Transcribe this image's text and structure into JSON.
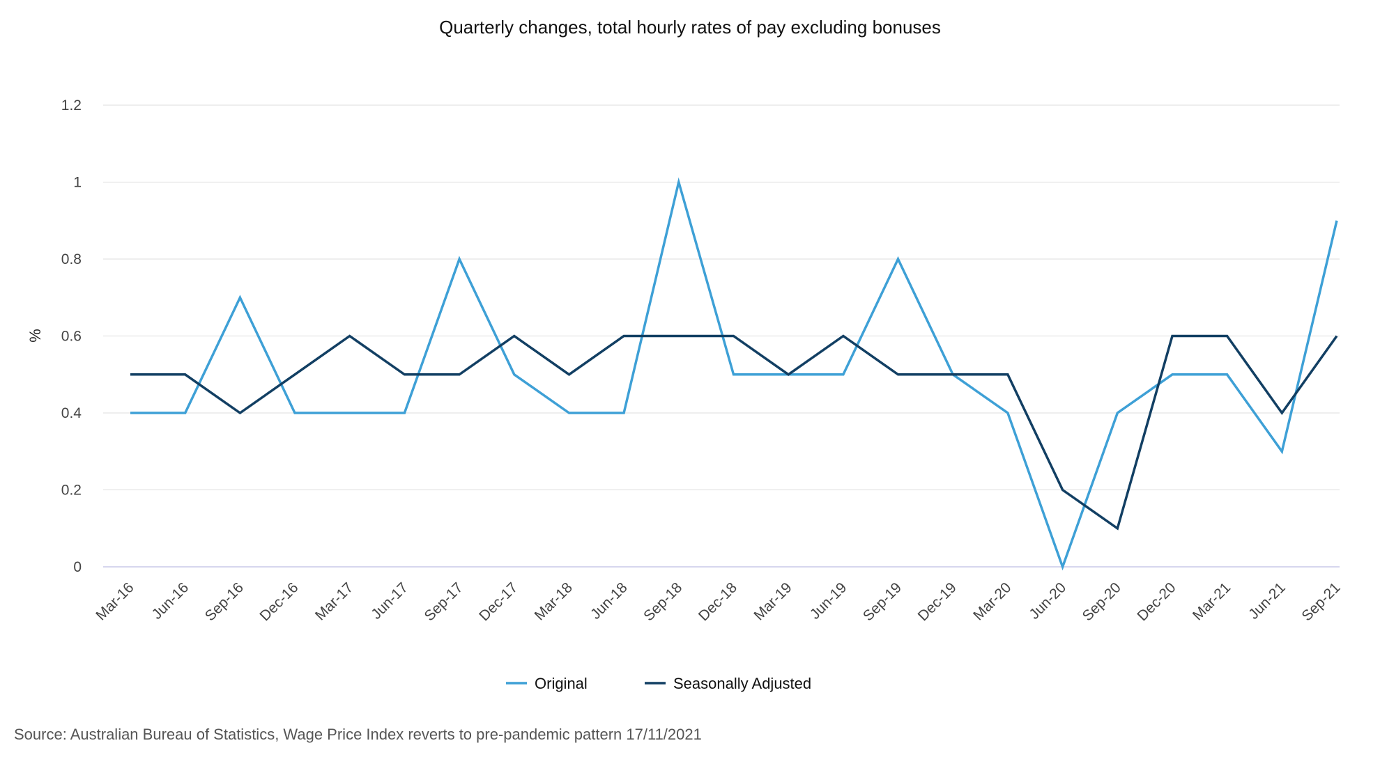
{
  "chart_data": {
    "type": "line",
    "title": "Quarterly changes, total hourly rates of pay excluding bonuses",
    "xlabel": "",
    "ylabel": "%",
    "ylim": [
      0,
      1.2
    ],
    "yticks": [
      "0",
      "0.2",
      "0.4",
      "0.6",
      "0.8",
      "1",
      "1.2"
    ],
    "ytick_values": [
      0,
      0.2,
      0.4,
      0.6,
      0.8,
      1.0,
      1.2
    ],
    "grid": true,
    "legend_position": "bottom-center",
    "categories": [
      "Mar-16",
      "Jun-16",
      "Sep-16",
      "Dec-16",
      "Mar-17",
      "Jun-17",
      "Sep-17",
      "Dec-17",
      "Mar-18",
      "Jun-18",
      "Sep-18",
      "Dec-18",
      "Mar-19",
      "Jun-19",
      "Sep-19",
      "Dec-19",
      "Mar-20",
      "Jun-20",
      "Sep-20",
      "Dec-20",
      "Mar-21",
      "Jun-21",
      "Sep-21"
    ],
    "series": [
      {
        "name": "Original",
        "color": "#3ea0d6",
        "values": [
          0.4,
          0.4,
          0.7,
          0.4,
          0.4,
          0.4,
          0.8,
          0.5,
          0.4,
          0.4,
          1.0,
          0.5,
          0.5,
          0.5,
          0.8,
          0.5,
          0.4,
          0.0,
          0.4,
          0.5,
          0.5,
          0.3,
          0.9
        ]
      },
      {
        "name": "Seasonally Adjusted",
        "color": "#123f63",
        "values": [
          0.5,
          0.5,
          0.4,
          0.5,
          0.6,
          0.5,
          0.5,
          0.6,
          0.5,
          0.6,
          0.6,
          0.6,
          0.5,
          0.6,
          0.5,
          0.5,
          0.5,
          0.2,
          0.1,
          0.6,
          0.6,
          0.4,
          0.6
        ]
      }
    ]
  },
  "footer": {
    "source": "Source: Australian Bureau of Statistics, Wage Price Index reverts to pre-pandemic pattern 17/11/2021"
  }
}
